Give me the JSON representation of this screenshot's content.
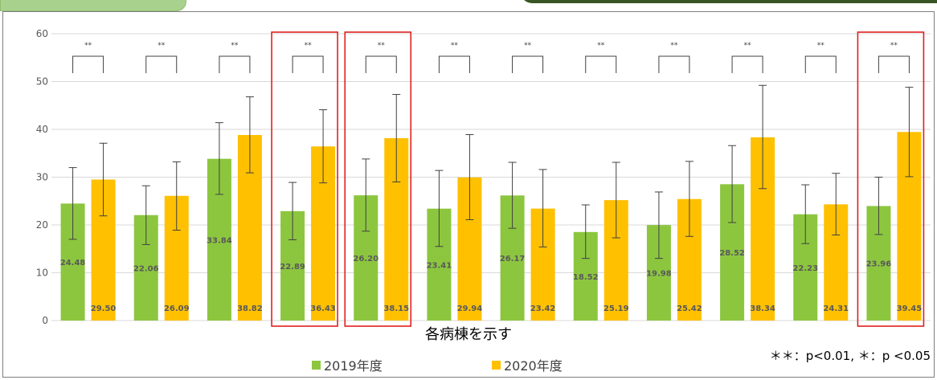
{
  "chart_data": {
    "type": "bar",
    "xlabel": "各病棟を示す",
    "ylabel": "",
    "ylim": [
      0,
      60
    ],
    "yticks": [
      0,
      10,
      20,
      30,
      40,
      50,
      60
    ],
    "grid": true,
    "legend_position": "bottom",
    "series": [
      {
        "name": "2019年度",
        "color": "#8cc63f",
        "values": [
          24.48,
          22.06,
          33.84,
          22.89,
          26.2,
          23.41,
          26.17,
          18.52,
          19.98,
          28.52,
          22.23,
          23.96
        ],
        "labels": [
          "24.48",
          "22.06",
          "33.84",
          "22.89",
          "26.20",
          "23.41",
          "26.17",
          "18.52",
          "19.98",
          "28.52",
          "22.23",
          "23.96"
        ],
        "err_low": [
          17.0,
          15.9,
          26.4,
          16.9,
          18.7,
          15.5,
          19.3,
          13.0,
          13.0,
          20.5,
          16.1,
          18.0
        ],
        "err_high": [
          32.0,
          28.2,
          41.4,
          28.9,
          33.8,
          31.4,
          33.1,
          24.2,
          26.9,
          36.6,
          28.4,
          30.0
        ]
      },
      {
        "name": "2020年度",
        "color": "#ffc000",
        "values": [
          29.5,
          26.09,
          38.82,
          36.43,
          38.15,
          29.94,
          23.42,
          25.19,
          25.42,
          38.34,
          24.31,
          39.45
        ],
        "labels": [
          "29.50",
          "26.09",
          "38.82",
          "36.43",
          "38.15",
          "29.94",
          "23.42",
          "25.19",
          "25.42",
          "38.34",
          "24.31",
          "39.45"
        ],
        "err_low": [
          21.9,
          18.9,
          30.9,
          28.8,
          29.0,
          21.1,
          15.4,
          17.3,
          17.6,
          27.6,
          17.9,
          30.1
        ],
        "err_high": [
          37.1,
          33.2,
          46.8,
          44.1,
          47.3,
          38.9,
          31.6,
          33.1,
          33.3,
          49.2,
          30.8,
          48.8
        ]
      }
    ],
    "significance": [
      "**",
      "**",
      "**",
      "**",
      "**",
      "**",
      "**",
      "**",
      "**",
      "**",
      "**",
      "**"
    ],
    "highlighted_groups": [
      3,
      4,
      11
    ],
    "annotation": "＊＊：p<0.01, ＊：p <0.05"
  }
}
